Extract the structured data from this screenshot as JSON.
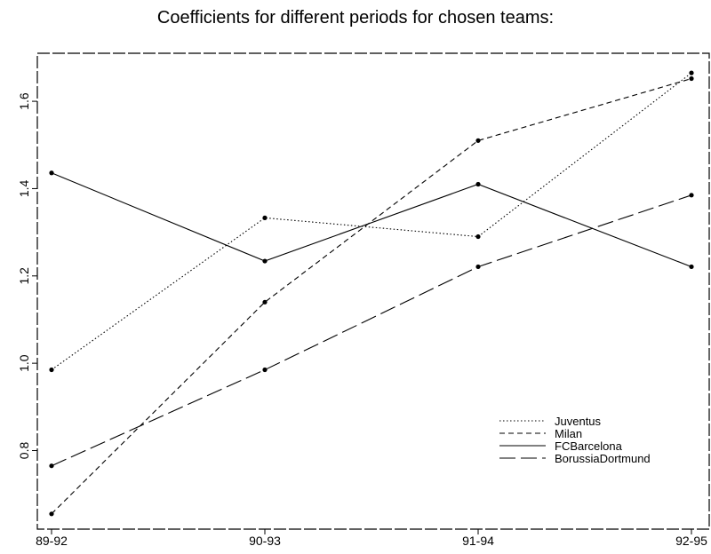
{
  "chart_data": {
    "type": "line",
    "title": "Coefficients for different periods for chosen teams:",
    "xlabel": "",
    "ylabel": "",
    "categories": [
      "89-92",
      "90-93",
      "91-94",
      "92-95"
    ],
    "yticks": [
      "0.8",
      "1.0",
      "1.2",
      "1.4",
      "1.6"
    ],
    "ylim": [
      0.62,
      1.71
    ],
    "grid": false,
    "legend_position": "bottom-right",
    "series": [
      {
        "name": "Juventus",
        "values": [
          0.985,
          1.333,
          1.29,
          1.665
        ],
        "dash": "1.5,2.5"
      },
      {
        "name": "Milan",
        "values": [
          0.655,
          1.14,
          1.51,
          1.652
        ],
        "dash": "6,4"
      },
      {
        "name": "FCBarcelona",
        "values": [
          1.436,
          1.234,
          1.41,
          1.221
        ],
        "dash": ""
      },
      {
        "name": "BorussiaDortmund",
        "values": [
          0.765,
          0.985,
          1.221,
          1.385
        ],
        "dash": "18,6"
      }
    ],
    "colors": {
      "line": "#000000",
      "background": "#ffffff"
    }
  }
}
